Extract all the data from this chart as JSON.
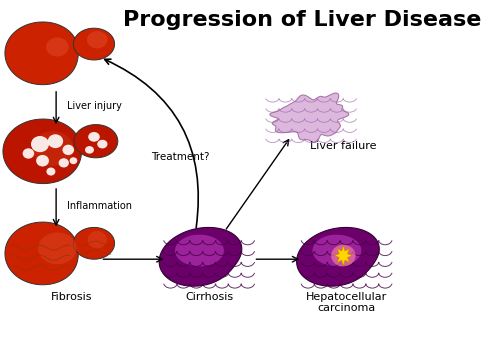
{
  "title": "Progression of Liver Disease",
  "title_fontsize": 16,
  "title_fontweight": "bold",
  "bg_color": "#ffffff",
  "labels": {
    "liver_injury": "Liver injury",
    "inflammation": "Inflammation",
    "fibrosis": "Fibrosis",
    "cirrhosis": "Cirrhosis",
    "hcc": "Hepatocellular\ncarcinoma",
    "liver_failure": "Liver failure",
    "treatment": "Treatment?"
  },
  "normal_liver_color": "#cc2200",
  "normal_liver_color_light": "#dd4422",
  "inflamed_color": "#bb1500",
  "inflamed_spot_color": "#ffffff",
  "inflamed_spot_color2": "#ffeeee",
  "fibrosis_color": "#cc2200",
  "fibrosis_color_light": "#dd4422",
  "cirrhosis_gradient_dark": "#6B006B",
  "cirrhosis_gradient_light": "#cc44cc",
  "cirrhosis_scale_color": "#440044",
  "hcc_tumor_color": "#FFD700",
  "hcc_glow_color": "#ff88aa",
  "failure_color": "#ddb8dd",
  "failure_outline": "#aa77aa",
  "failure_scale_color": "#9966aa"
}
